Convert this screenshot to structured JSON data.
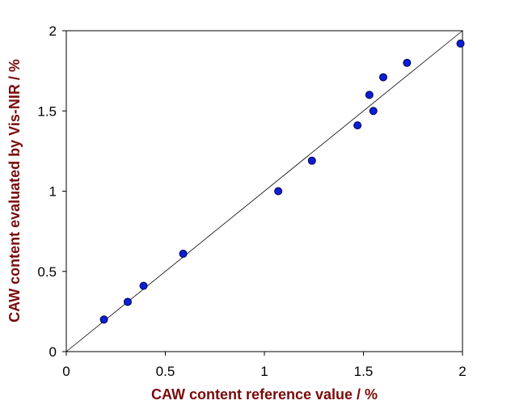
{
  "chart_data": {
    "type": "scatter",
    "xlabel": "CAW content reference value / %",
    "ylabel": "CAW content evaluated by Vis-NIR / %",
    "series": [
      {
        "color": "#0a1fd6",
        "x": [
          0.19,
          0.31,
          0.39,
          0.59,
          1.07,
          1.24,
          1.47,
          1.53,
          1.55,
          1.6,
          1.72,
          1.99
        ],
        "values": [
          0.2,
          0.31,
          0.41,
          0.61,
          1.0,
          1.19,
          1.41,
          1.6,
          1.5,
          1.71,
          1.8,
          1.92
        ]
      }
    ],
    "xlim": [
      0,
      2
    ],
    "ylim": [
      0,
      2
    ],
    "xticks": [
      0,
      0.5,
      1,
      1.5,
      2
    ],
    "yticks": [
      0,
      0.5,
      1,
      1.5,
      2
    ]
  }
}
